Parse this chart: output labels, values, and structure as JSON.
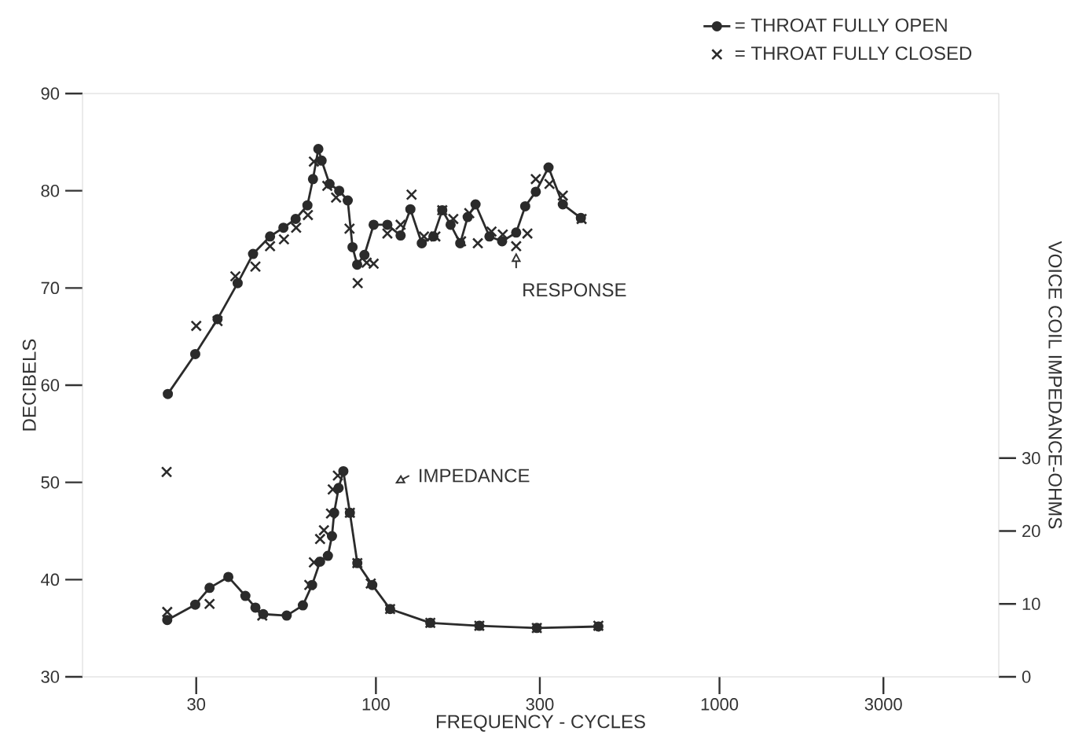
{
  "chart_data": {
    "type": "line",
    "xlabel": "FREQUENCY - CYCLES",
    "ylabel": "DECIBELS",
    "y2label": "VOICE COIL IMPEDANCE-OHMS",
    "log": "x",
    "xlim": [
      14,
      6500
    ],
    "xticks": [
      30,
      100,
      300,
      1000,
      3000
    ],
    "ylim": [
      30,
      90
    ],
    "yticks": [
      30,
      40,
      50,
      60,
      70,
      80,
      90
    ],
    "y2lim": [
      0,
      80
    ],
    "y2ticks": [
      0,
      10,
      20,
      30
    ],
    "legend": "top right",
    "series": [
      {
        "name": "= THROAT FULLY OPEN",
        "marker": "circle",
        "line_style": "solid",
        "color": "#2b2b2b",
        "x": [
          24.8,
          29.8,
          34.6,
          39.6,
          43.9,
          49.2,
          53.8,
          58.4,
          63.2,
          65.6,
          68.0,
          69.5,
          73.3,
          78.2,
          82.8,
          85.5,
          88.2,
          92.6,
          98.5,
          108,
          118,
          126,
          136,
          147,
          156,
          165,
          176,
          185,
          195,
          214,
          233,
          256,
          272,
          292,
          318,
          350,
          395
        ],
        "values": [
          59.1,
          63.2,
          66.8,
          70.5,
          73.5,
          75.3,
          76.2,
          77.1,
          78.5,
          81.2,
          84.3,
          83.1,
          80.7,
          80.0,
          79.0,
          74.2,
          72.4,
          73.4,
          76.5,
          76.5,
          75.4,
          78.1,
          74.6,
          75.3,
          78.0,
          76.5,
          74.6,
          77.3,
          78.6,
          75.3,
          74.8,
          75.7,
          78.4,
          79.9,
          82.4,
          78.6,
          77.2
        ]
      },
      {
        "name": "= THROAT FULLY CLOSED",
        "type": "scatter",
        "marker": "cross",
        "color": "#2b2b2b",
        "x": [
          30,
          34.6,
          39,
          44.6,
          49.2,
          54,
          58.6,
          63.4,
          66,
          72.2,
          76.6,
          83.8,
          88.5,
          94,
          98.5,
          108,
          118,
          127,
          138,
          149,
          156,
          168,
          177,
          187,
          198,
          217,
          234,
          256,
          276,
          292,
          320,
          350,
          397
        ],
        "values": [
          66.1,
          66.6,
          71.2,
          72.2,
          74.3,
          75.0,
          76.2,
          77.5,
          83.0,
          80.5,
          79.3,
          76.1,
          70.5,
          72.6,
          72.5,
          75.6,
          76.5,
          79.6,
          75.3,
          75.3,
          78.0,
          77.1,
          74.8,
          77.7,
          74.6,
          75.8,
          75.5,
          74.3,
          75.6,
          81.2,
          80.7,
          79.5,
          77.1
        ]
      },
      {
        "axis": "y2",
        "marker": "circle",
        "line_style": "solid",
        "color": "#2b2b2b",
        "x": [
          24.7,
          29.8,
          32.8,
          37.2,
          41.7,
          44.6,
          47.0,
          55.0,
          61.3,
          65.2,
          68.8,
          72.5,
          74.5,
          75.6,
          77.9,
          80.4,
          84.0,
          88.3,
          97.6,
          110,
          144,
          200,
          294,
          444
        ],
        "values": [
          7.8,
          9.9,
          12.2,
          13.7,
          11.1,
          9.5,
          8.6,
          8.4,
          9.8,
          12.6,
          15.8,
          16.6,
          19.3,
          22.5,
          25.9,
          28.2,
          22.5,
          15.6,
          12.6,
          9.3,
          7.4,
          7.0,
          6.7,
          6.9
        ]
      },
      {
        "type": "scatter",
        "axis": "y2",
        "marker": "cross",
        "color": "#2b2b2b",
        "x": [
          24.6,
          24.7,
          32.8,
          46.7,
          64,
          66,
          68.8,
          70.6,
          74,
          74.9,
          77.5,
          84,
          88.3,
          96.6,
          110,
          144,
          200,
          294,
          444
        ],
        "values": [
          28.1,
          8.9,
          10.0,
          8.4,
          12.6,
          15.7,
          18.9,
          20.1,
          22.4,
          25.7,
          27.6,
          22.5,
          15.6,
          12.8,
          9.3,
          7.4,
          7.0,
          6.7,
          7.0
        ]
      }
    ],
    "annotations": [
      {
        "text": "RESPONSE",
        "x": 256,
        "y": 74.3
      },
      "IMPEDANCE"
    ]
  }
}
